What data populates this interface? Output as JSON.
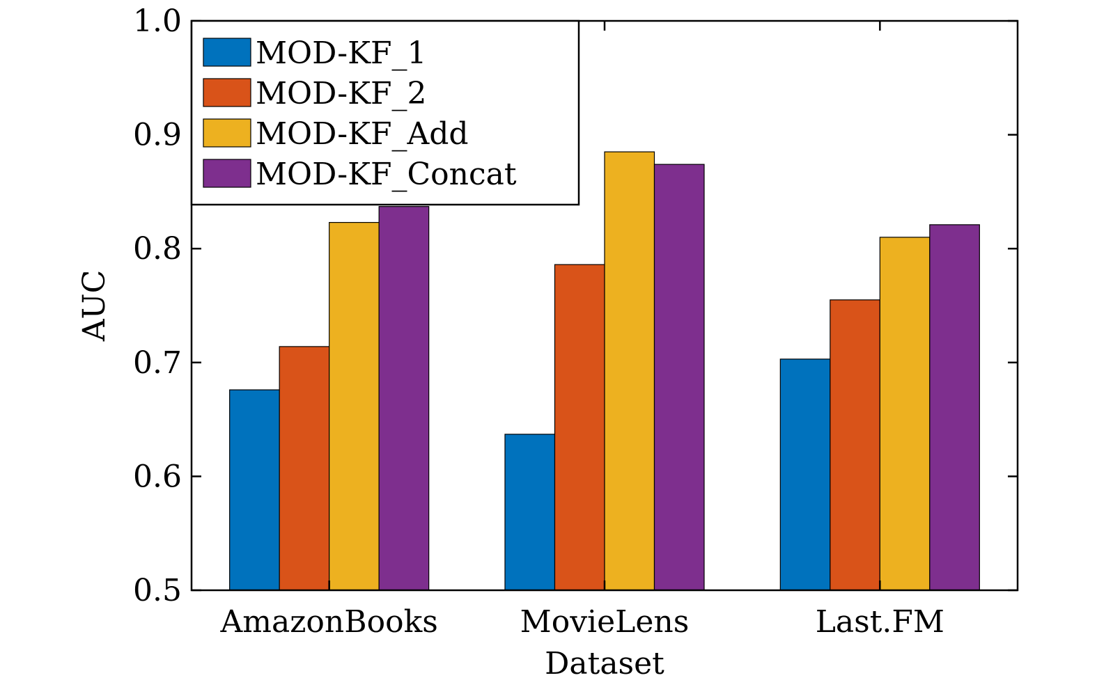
{
  "chart_data": {
    "type": "bar",
    "title": "",
    "xlabel": "Dataset",
    "ylabel": "AUC",
    "ylim": [
      0.5,
      1.0
    ],
    "yticks": [
      "0.5",
      "0.6",
      "0.7",
      "0.8",
      "0.9",
      "1.0"
    ],
    "categories": [
      "AmazonBooks",
      "MovieLens",
      "Last.FM"
    ],
    "series": [
      {
        "name": "MOD-KF_1",
        "color": "#0072BD",
        "values": [
          0.676,
          0.637,
          0.703
        ]
      },
      {
        "name": "MOD-KF_2",
        "color": "#D95319",
        "values": [
          0.714,
          0.786,
          0.755
        ]
      },
      {
        "name": "MOD-KF_Add",
        "color": "#EDB120",
        "values": [
          0.823,
          0.885,
          0.81
        ]
      },
      {
        "name": "MOD-KF_Concat",
        "color": "#7E2F8E",
        "values": [
          0.837,
          0.874,
          0.821
        ]
      }
    ],
    "grid": false,
    "legend_position": "top-left"
  }
}
